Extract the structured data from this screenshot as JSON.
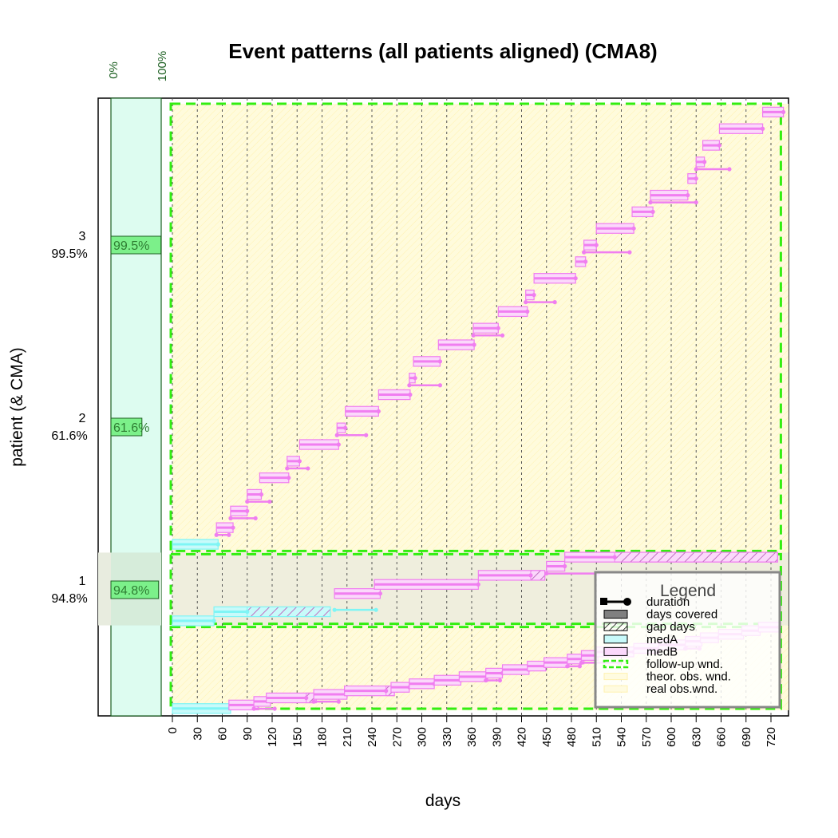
{
  "chart_data": {
    "type": "timeline",
    "title": "Event patterns (all patients aligned) (CMA8)",
    "xlabel": "days",
    "ylabel": "patient (& CMA)",
    "xlim": [
      0,
      735
    ],
    "x_ticks": [
      0,
      30,
      60,
      90,
      120,
      150,
      180,
      210,
      240,
      270,
      300,
      330,
      360,
      390,
      420,
      450,
      480,
      510,
      540,
      570,
      600,
      630,
      660,
      690,
      720
    ],
    "cma_axis_labels": [
      "0%",
      "100%"
    ],
    "colors": {
      "medA": "#7ff5f5",
      "medA_fill": "#c8fafa",
      "medB": "#f07ef0",
      "medB_fill": "#fbd8fb",
      "followup": "#33ee11",
      "obs_wnd": "#fffbdc",
      "cma_bar": "#7cf08a",
      "cma_panel": "#ddfcf0",
      "grid": "#555555"
    },
    "patients": [
      {
        "id": "1",
        "cma": 0.948,
        "cma_label": "94.8%",
        "band": [
          0,
          7
        ],
        "events": [
          {
            "med": "medA",
            "start": 0,
            "duration": 70,
            "covered": 70,
            "gap": 0,
            "extra": 0
          },
          {
            "med": "medB",
            "start": 68,
            "duration": 35,
            "covered": 35,
            "gap": 0,
            "extra": 0
          },
          {
            "med": "medB",
            "start": 98,
            "duration": 20,
            "covered": 20,
            "gap": 0,
            "extra": 5
          },
          {
            "med": "medB",
            "start": 113,
            "duration": 60,
            "covered": 48,
            "gap": 12,
            "extra": 0
          },
          {
            "med": "medB",
            "start": 170,
            "duration": 40,
            "covered": 40,
            "gap": 0,
            "extra": -10
          },
          {
            "med": "medB",
            "start": 207,
            "duration": 60,
            "covered": 50,
            "gap": 10,
            "extra": 0
          },
          {
            "med": "medB",
            "start": 263,
            "duration": 22,
            "covered": 22,
            "gap": 0,
            "extra": 0
          },
          {
            "med": "medB",
            "start": 285,
            "duration": 30,
            "covered": 30,
            "gap": 0,
            "extra": 0
          },
          {
            "med": "medB",
            "start": 315,
            "duration": 32,
            "covered": 32,
            "gap": 0,
            "extra": 0
          },
          {
            "med": "medB",
            "start": 345,
            "duration": 34,
            "covered": 34,
            "gap": 0,
            "extra": 0
          },
          {
            "med": "medB",
            "start": 377,
            "duration": 20,
            "covered": 20,
            "gap": 0,
            "extra": -3
          },
          {
            "med": "medB",
            "start": 397,
            "duration": 32,
            "covered": 32,
            "gap": 0,
            "extra": 0
          },
          {
            "med": "medB",
            "start": 427,
            "duration": 22,
            "covered": 22,
            "gap": 0,
            "extra": 0
          },
          {
            "med": "medB",
            "start": 447,
            "duration": 30,
            "covered": 30,
            "gap": 0,
            "extra": 0
          },
          {
            "med": "medB",
            "start": 475,
            "duration": 20,
            "covered": 20,
            "gap": 0,
            "extra": -5
          },
          {
            "med": "medB",
            "start": 492,
            "duration": 20,
            "covered": 20,
            "gap": 0,
            "extra": 25
          },
          {
            "med": "medB",
            "start": 510,
            "duration": 45,
            "covered": 45,
            "gap": 0,
            "extra": 0
          },
          {
            "med": "medB",
            "start": 555,
            "duration": 30,
            "covered": 30,
            "gap": 0,
            "extra": 0
          },
          {
            "med": "medB",
            "start": 585,
            "duration": 34,
            "covered": 34,
            "gap": 0,
            "extra": 0
          },
          {
            "med": "medB",
            "start": 617,
            "duration": 20,
            "covered": 20,
            "gap": 0,
            "extra": -3
          },
          {
            "med": "medB",
            "start": 635,
            "duration": 22,
            "covered": 22,
            "gap": 0,
            "extra": 0
          },
          {
            "med": "medB",
            "start": 657,
            "duration": 30,
            "covered": 30,
            "gap": 0,
            "extra": 0
          },
          {
            "med": "medB",
            "start": 685,
            "duration": 22,
            "covered": 22,
            "gap": 0,
            "extra": 0
          },
          {
            "med": "medB",
            "start": 705,
            "duration": 25,
            "covered": 25,
            "gap": 0,
            "extra": 0
          }
        ]
      },
      {
        "id": "2",
        "cma": 0.616,
        "cma_label": "61.6%",
        "band": [
          7,
          13
        ],
        "events": [
          {
            "med": "medA",
            "start": 0,
            "duration": 50,
            "covered": 50,
            "gap": 0,
            "extra": 0
          },
          {
            "med": "medA",
            "start": 50,
            "duration": 140,
            "covered": 40,
            "gap": 100,
            "extra": 0
          },
          {
            "med": "medA",
            "start": 195,
            "duration": 0,
            "covered": 0,
            "gap": 0,
            "extra": 50
          },
          {
            "med": "medB",
            "start": 195,
            "duration": 55,
            "covered": 55,
            "gap": 0,
            "extra": 0
          },
          {
            "med": "medB",
            "start": 243,
            "duration": 125,
            "covered": 125,
            "gap": 0,
            "extra": 0
          },
          {
            "med": "medB",
            "start": 368,
            "duration": 80,
            "covered": 63,
            "gap": 17,
            "extra": 0
          },
          {
            "med": "medB",
            "start": 450,
            "duration": 22,
            "covered": 22,
            "gap": 0,
            "extra": 40
          },
          {
            "med": "medB",
            "start": 472,
            "duration": 256,
            "covered": 60,
            "gap": 196,
            "extra": 0
          }
        ]
      },
      {
        "id": "3",
        "cma": 0.995,
        "cma_label": "99.5%",
        "band": [
          13,
          50
        ],
        "events": [
          {
            "med": "medA",
            "start": 0,
            "duration": 55,
            "covered": 55,
            "gap": 0,
            "extra": 0
          },
          {
            "med": "medB",
            "start": 53,
            "duration": 20,
            "covered": 20,
            "gap": 0,
            "extra": -5
          },
          {
            "med": "medB",
            "start": 70,
            "duration": 20,
            "covered": 20,
            "gap": 0,
            "extra": 10
          },
          {
            "med": "medB",
            "start": 90,
            "duration": 17,
            "covered": 17,
            "gap": 0,
            "extra": 10
          },
          {
            "med": "medB",
            "start": 105,
            "duration": 35,
            "covered": 35,
            "gap": 0,
            "extra": 0
          },
          {
            "med": "medB",
            "start": 138,
            "duration": 15,
            "covered": 15,
            "gap": 0,
            "extra": 10
          },
          {
            "med": "medB",
            "start": 153,
            "duration": 47,
            "covered": 47,
            "gap": 0,
            "extra": 0
          },
          {
            "med": "medB",
            "start": 198,
            "duration": 10,
            "covered": 10,
            "gap": 0,
            "extra": 25
          },
          {
            "med": "medB",
            "start": 208,
            "duration": 40,
            "covered": 40,
            "gap": 0,
            "extra": 0
          },
          {
            "med": "medB",
            "start": 248,
            "duration": 38,
            "covered": 38,
            "gap": 0,
            "extra": 0
          },
          {
            "med": "medB",
            "start": 285,
            "duration": 7,
            "covered": 7,
            "gap": 0,
            "extra": 30
          },
          {
            "med": "medB",
            "start": 290,
            "duration": 32,
            "covered": 32,
            "gap": 0,
            "extra": 0
          },
          {
            "med": "medB",
            "start": 320,
            "duration": 43,
            "covered": 43,
            "gap": 0,
            "extra": 0
          },
          {
            "med": "medB",
            "start": 362,
            "duration": 30,
            "covered": 30,
            "gap": 0,
            "extra": 5
          },
          {
            "med": "medB",
            "start": 392,
            "duration": 35,
            "covered": 35,
            "gap": 0,
            "extra": 0
          },
          {
            "med": "medB",
            "start": 425,
            "duration": 10,
            "covered": 10,
            "gap": 0,
            "extra": 25
          },
          {
            "med": "medB",
            "start": 435,
            "duration": 50,
            "covered": 50,
            "gap": 0,
            "extra": 0
          },
          {
            "med": "medB",
            "start": 485,
            "duration": 12,
            "covered": 12,
            "gap": 0,
            "extra": 0
          },
          {
            "med": "medB",
            "start": 495,
            "duration": 15,
            "covered": 15,
            "gap": 0,
            "extra": 40
          },
          {
            "med": "medB",
            "start": 510,
            "duration": 45,
            "covered": 45,
            "gap": 0,
            "extra": 0
          },
          {
            "med": "medB",
            "start": 553,
            "duration": 25,
            "covered": 25,
            "gap": 0,
            "extra": 0
          },
          {
            "med": "medB",
            "start": 575,
            "duration": 45,
            "covered": 45,
            "gap": 0,
            "extra": 10
          },
          {
            "med": "medB",
            "start": 620,
            "duration": 10,
            "covered": 10,
            "gap": 0,
            "extra": 0
          },
          {
            "med": "medB",
            "start": 630,
            "duration": 10,
            "covered": 10,
            "gap": 0,
            "extra": 30
          },
          {
            "med": "medB",
            "start": 638,
            "duration": 20,
            "covered": 20,
            "gap": 0,
            "extra": 0
          },
          {
            "med": "medB",
            "start": 658,
            "duration": 52,
            "covered": 52,
            "gap": 0,
            "extra": 0
          },
          {
            "med": "medB",
            "start": 710,
            "duration": 25,
            "covered": 25,
            "gap": 0,
            "extra": 0
          }
        ]
      }
    ],
    "legend": {
      "title": "Legend",
      "placement": "bottom-right",
      "items": [
        {
          "kind": "duration",
          "label": "duration"
        },
        {
          "kind": "covered",
          "label": "days covered"
        },
        {
          "kind": "gap",
          "label": "gap days"
        },
        {
          "kind": "medA",
          "label": "medA"
        },
        {
          "kind": "medB",
          "label": "medB"
        },
        {
          "kind": "followup",
          "label": "follow-up wnd."
        },
        {
          "kind": "theor",
          "label": "theor. obs. wnd."
        },
        {
          "kind": "real",
          "label": "real obs.wnd."
        }
      ]
    }
  }
}
